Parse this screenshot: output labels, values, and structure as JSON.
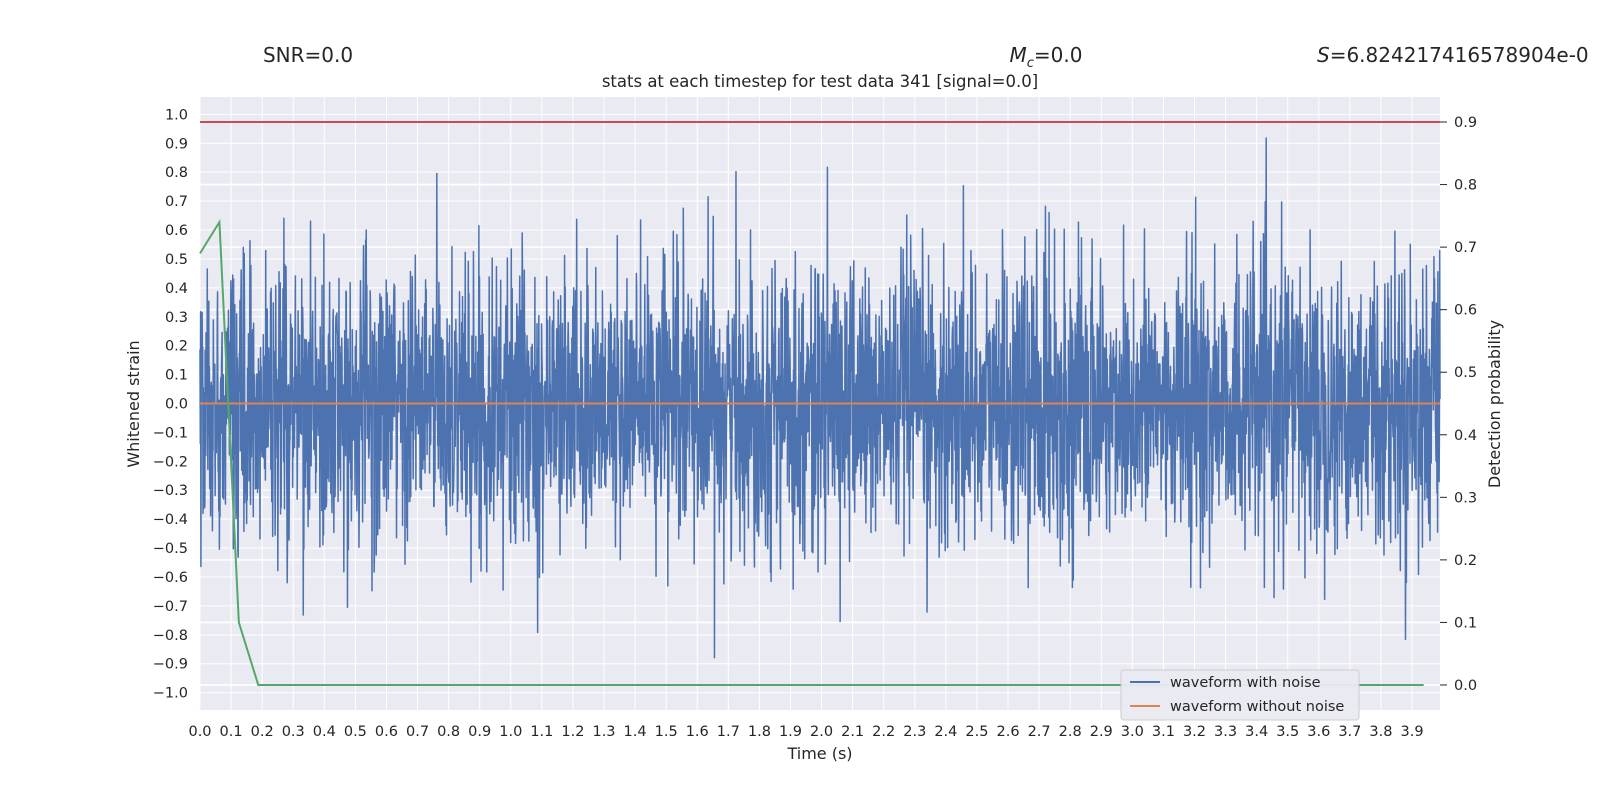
{
  "chart_data": {
    "type": "line",
    "title": "stats at each timestep for test data 341 [signal=0.0]",
    "suptitles": {
      "snr": "SNR=0.0",
      "mc_symbol": "M",
      "mc_sub": "c",
      "mc_value": "=0.0",
      "s_symbol": "S",
      "s_value": "=6.824217416578904e-0"
    },
    "xlabel": "Time (s)",
    "ylabel_left": "Whitened strain",
    "ylabel_right": "Detection probability",
    "xlim": [
      0.0,
      3.99
    ],
    "ylim_left": [
      -1.06,
      1.06
    ],
    "ylim_right": [
      -0.04,
      0.94
    ],
    "x_ticks": [
      "0.0",
      "0.1",
      "0.2",
      "0.3",
      "0.4",
      "0.5",
      "0.6",
      "0.7",
      "0.8",
      "0.9",
      "1.0",
      "1.1",
      "1.2",
      "1.3",
      "1.4",
      "1.5",
      "1.6",
      "1.7",
      "1.8",
      "1.9",
      "2.0",
      "2.1",
      "2.2",
      "2.3",
      "2.4",
      "2.5",
      "2.6",
      "2.7",
      "2.8",
      "2.9",
      "3.0",
      "3.1",
      "3.2",
      "3.3",
      "3.4",
      "3.5",
      "3.6",
      "3.7",
      "3.8",
      "3.9"
    ],
    "y_ticks_left": [
      "1.0",
      "0.9",
      "0.8",
      "0.7",
      "0.6",
      "0.5",
      "0.4",
      "0.3",
      "0.2",
      "0.1",
      "0.0",
      "-0.1",
      "-0.2",
      "-0.3",
      "-0.4",
      "-0.5",
      "-0.6",
      "-0.7",
      "-0.8",
      "-0.9",
      "-1.0"
    ],
    "y_ticks_right": [
      "0.9",
      "0.8",
      "0.7",
      "0.6",
      "0.5",
      "0.4",
      "0.3",
      "0.2",
      "0.1",
      "0.0"
    ],
    "series": [
      {
        "name": "waveform with noise",
        "axis": "left",
        "color": "#4c72b0",
        "description_values": "dense whitened noise, 4096 samples, envelope roughly -1.0 to 0.96",
        "sample_count": 4096,
        "x_range": [
          0.0,
          3.99
        ],
        "min": -1.0,
        "max": 0.96
      },
      {
        "name": "waveform without noise",
        "axis": "left",
        "color": "#dd8452",
        "x": [
          0.0,
          3.99
        ],
        "y": [
          0.0,
          0.0
        ]
      },
      {
        "name": "detection probability",
        "axis": "right",
        "color": "#55a868",
        "x": [
          0.0,
          0.0625,
          0.125,
          0.1875,
          0.25,
          3.9375
        ],
        "y": [
          0.69,
          0.74,
          0.1,
          0.0,
          0.0,
          0.0
        ]
      },
      {
        "name": "threshold",
        "axis": "right",
        "color": "#c44e52",
        "x": [
          0.0,
          3.99
        ],
        "y": [
          0.9,
          0.9
        ]
      }
    ],
    "legend": {
      "position": "lower-right",
      "entries": [
        "waveform with noise",
        "waveform without noise"
      ]
    }
  },
  "colors": {
    "axes_bg": "#eaeaf2",
    "grid": "#ffffff"
  }
}
